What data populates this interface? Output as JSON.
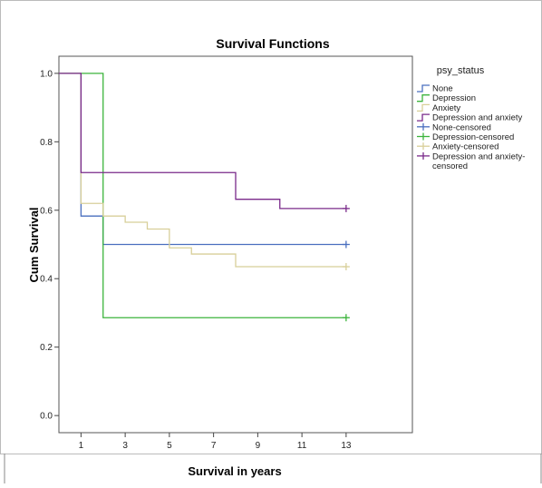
{
  "chart_data": {
    "type": "line",
    "title": "Survival Functions",
    "xlabel": "Survival in years",
    "ylabel": "Cum Survival",
    "xlim": [
      0,
      16
    ],
    "ylim": [
      -0.05,
      1.05
    ],
    "xticks": [
      "1",
      "3",
      "5",
      "7",
      "9",
      "11",
      "13"
    ],
    "yticks": [
      "0.0",
      "0.2",
      "0.4",
      "0.6",
      "0.8",
      "1.0"
    ],
    "grid": false,
    "legend_position": "right",
    "legend_title": "psy_status",
    "legend_entries": [
      {
        "label": "None",
        "color": "#4a6fbf",
        "marker": "step"
      },
      {
        "label": "Depression",
        "color": "#3cb43c",
        "marker": "step"
      },
      {
        "label": "Anxiety",
        "color": "#d8cf99",
        "marker": "step"
      },
      {
        "label": "Depression and anxiety",
        "color": "#7a2a8a",
        "marker": "step"
      },
      {
        "label": "None-censored",
        "color": "#4a6fbf",
        "marker": "plus"
      },
      {
        "label": "Depression-censored",
        "color": "#3cb43c",
        "marker": "plus"
      },
      {
        "label": "Anxiety-censored",
        "color": "#d8cf99",
        "marker": "plus"
      },
      {
        "label": "Depression and anxiety-censored",
        "color": "#7a2a8a",
        "marker": "plus"
      }
    ],
    "series": [
      {
        "name": "None",
        "color": "#4a6fbf",
        "x": [
          0,
          1,
          2,
          13
        ],
        "y": [
          1.0,
          0.583,
          0.5,
          0.5
        ],
        "censored": [
          [
            13,
            0.5
          ]
        ]
      },
      {
        "name": "Depression",
        "color": "#3cb43c",
        "x": [
          0,
          2,
          13
        ],
        "y": [
          1.0,
          0.286,
          0.286
        ],
        "censored": [
          [
            13,
            0.286
          ]
        ]
      },
      {
        "name": "Anxiety",
        "color": "#d8cf99",
        "x": [
          0,
          1,
          2,
          3,
          4,
          5,
          6,
          8,
          13
        ],
        "y": [
          1.0,
          0.62,
          0.583,
          0.565,
          0.545,
          0.49,
          0.472,
          0.435,
          0.435
        ],
        "censored": [
          [
            13,
            0.435
          ]
        ]
      },
      {
        "name": "Depression and anxiety",
        "color": "#7a2a8a",
        "x": [
          0,
          1,
          8,
          10,
          13
        ],
        "y": [
          1.0,
          0.71,
          0.632,
          0.605,
          0.605
        ],
        "censored": [
          [
            13,
            0.605
          ]
        ]
      }
    ]
  }
}
